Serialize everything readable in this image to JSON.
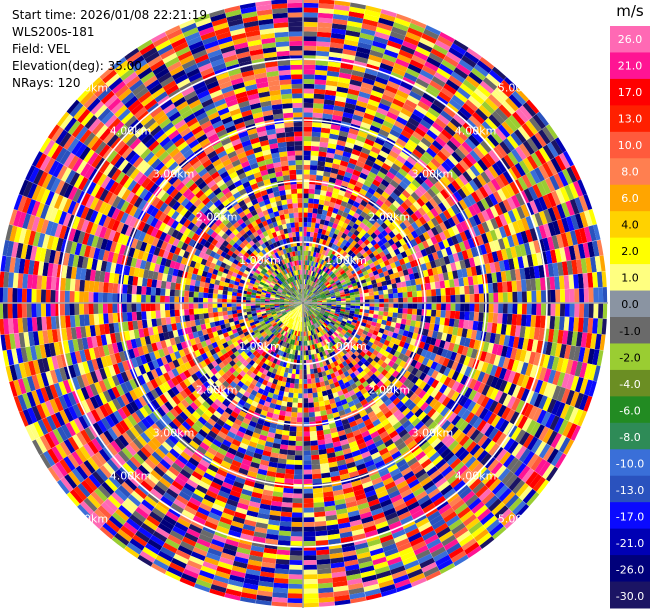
{
  "info": {
    "start_time": "Start time: 2026/01/08 22:21:19",
    "instrument": "WLS200s-181",
    "field": "Field: VEL",
    "elevation": "Elevation(deg): 35.00",
    "nrays": "NRays: 120"
  },
  "colorbar": {
    "unit": "m/s",
    "ticks": [
      "26.0",
      "21.0",
      "17.0",
      "13.0",
      "10.0",
      "8.0",
      "6.0",
      "4.0",
      "2.0",
      "1.0",
      "0.0",
      "-1.0",
      "-2.0",
      "-4.0",
      "-6.0",
      "-8.0",
      "-10.0",
      "-13.0",
      "-17.0",
      "-21.0",
      "-26.0",
      "-30.0"
    ],
    "colors": [
      "#1b1464",
      "#00007a",
      "#0000b4",
      "#0a0aff",
      "#2a52be",
      "#3a6fd8",
      "#2e8b57",
      "#228b22",
      "#6b8e23",
      "#9acd32",
      "#6a6a6a",
      "#8a94a2",
      "#ffff80",
      "#ffff00",
      "#ffd200",
      "#ffa500",
      "#ff7f50",
      "#ff5a3c",
      "#ff2000",
      "#ff0000",
      "#ff1493",
      "#ff69b4"
    ]
  },
  "chart_data": {
    "type": "heatmap",
    "projection": "polar (PPI)",
    "field": "VEL",
    "unit": "m/s",
    "n_rays": 120,
    "range_rings_km": [
      1.0,
      2.0,
      3.0,
      4.0,
      5.0
    ],
    "range_ring_labels": [
      "1.00km",
      "2.00km",
      "3.00km",
      "4.00km",
      "5.00km"
    ],
    "max_range_km": 5.0,
    "colorbar_min": -30.0,
    "colorbar_max": 30.0
  }
}
